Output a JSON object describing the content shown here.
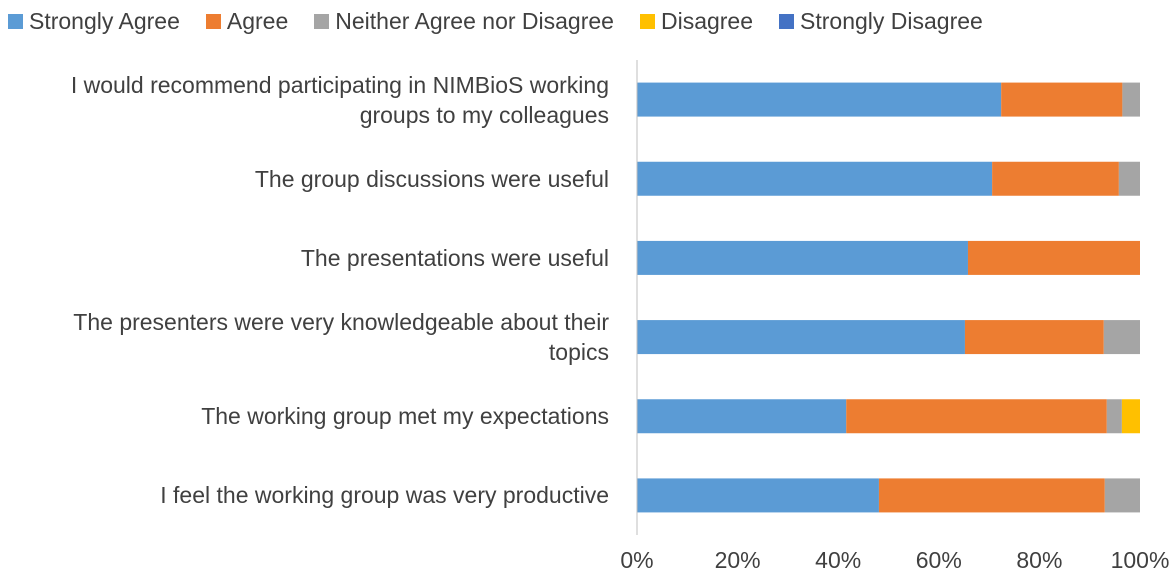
{
  "chart_data": {
    "type": "stacked-bar-horizontal",
    "categories": [
      "I would recommend participating in NIMBioS working groups to my colleagues",
      "The group discussions were useful",
      "The presentations were useful",
      "The presenters were very knowledgeable about their topics",
      "The working group met my expectations",
      "I feel the working group was very productive"
    ],
    "series": [
      {
        "name": "Strongly Agree",
        "color": "#5b9bd5",
        "values": [
          72.4,
          70.6,
          65.8,
          65.2,
          41.6,
          48.1
        ]
      },
      {
        "name": "Agree",
        "color": "#ed7d31",
        "values": [
          24.1,
          25.2,
          34.2,
          27.6,
          51.8,
          44.9
        ]
      },
      {
        "name": "Neither Agree nor Disagree",
        "color": "#a5a5a5",
        "values": [
          3.5,
          4.2,
          0,
          7.2,
          3.0,
          7.0
        ]
      },
      {
        "name": "Disagree",
        "color": "#ffc000",
        "values": [
          0,
          0,
          0,
          0,
          3.6,
          0
        ]
      },
      {
        "name": "Strongly Disagree",
        "color": "#4472c4",
        "values": [
          0,
          0,
          0,
          0,
          0,
          0
        ]
      }
    ],
    "xlim": [
      0,
      100
    ],
    "xticks": [
      {
        "value": 0,
        "label": "0%"
      },
      {
        "value": 20,
        "label": "20%"
      },
      {
        "value": 40,
        "label": "40%"
      },
      {
        "value": 60,
        "label": "60%"
      },
      {
        "value": 80,
        "label": "80%"
      },
      {
        "value": 100,
        "label": "100%"
      }
    ],
    "legend": "top"
  }
}
